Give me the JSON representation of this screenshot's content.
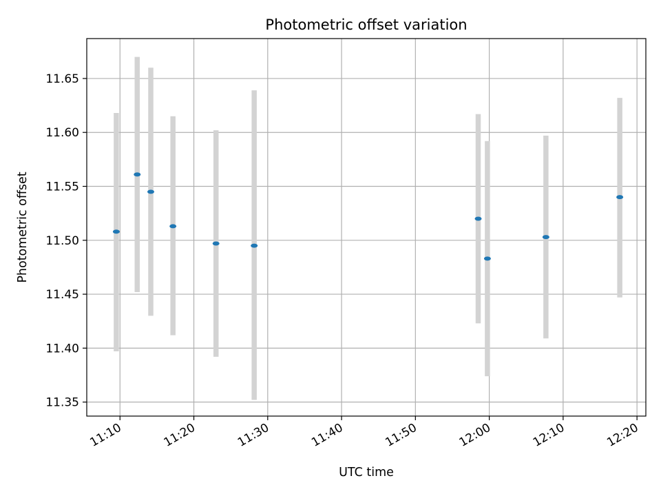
{
  "chart_data": {
    "type": "scatter",
    "title": "Photometric offset variation",
    "xlabel": "UTC time",
    "ylabel": "Photometric offset",
    "x_ticks": [
      "11:10",
      "11:20",
      "11:30",
      "11:40",
      "11:50",
      "12:00",
      "12:10",
      "12:20"
    ],
    "x_tick_minutes": [
      670,
      680,
      690,
      700,
      710,
      720,
      730,
      740
    ],
    "xlim_minutes": [
      665.5,
      741.2
    ],
    "y_ticks": [
      "11.35",
      "11.40",
      "11.45",
      "11.50",
      "11.55",
      "11.60",
      "11.65"
    ],
    "y_tick_values": [
      11.35,
      11.4,
      11.45,
      11.5,
      11.55,
      11.6,
      11.65
    ],
    "ylim": [
      11.337,
      11.687
    ],
    "grid": true,
    "point_color": "#1f77b4",
    "errorbar_color": "#d3d3d3",
    "points": [
      {
        "time": "11:09:30",
        "minute": 669.5,
        "y": 11.508,
        "ylow": 11.397,
        "yhigh": 11.618
      },
      {
        "time": "11:12:20",
        "minute": 672.33,
        "y": 11.561,
        "ylow": 11.452,
        "yhigh": 11.67
      },
      {
        "time": "11:14:10",
        "minute": 674.17,
        "y": 11.545,
        "ylow": 11.43,
        "yhigh": 11.66
      },
      {
        "time": "11:17:10",
        "minute": 677.17,
        "y": 11.513,
        "ylow": 11.412,
        "yhigh": 11.615
      },
      {
        "time": "11:23:00",
        "minute": 683.0,
        "y": 11.497,
        "ylow": 11.392,
        "yhigh": 11.602
      },
      {
        "time": "11:28:10",
        "minute": 688.17,
        "y": 11.495,
        "ylow": 11.352,
        "yhigh": 11.639
      },
      {
        "time": "11:58:30",
        "minute": 718.5,
        "y": 11.52,
        "ylow": 11.423,
        "yhigh": 11.617
      },
      {
        "time": "11:59:45",
        "minute": 719.75,
        "y": 11.483,
        "ylow": 11.374,
        "yhigh": 11.592
      },
      {
        "time": "12:07:40",
        "minute": 727.67,
        "y": 11.503,
        "ylow": 11.409,
        "yhigh": 11.597
      },
      {
        "time": "12:17:40",
        "minute": 737.67,
        "y": 11.54,
        "ylow": 11.447,
        "yhigh": 11.632
      }
    ]
  }
}
